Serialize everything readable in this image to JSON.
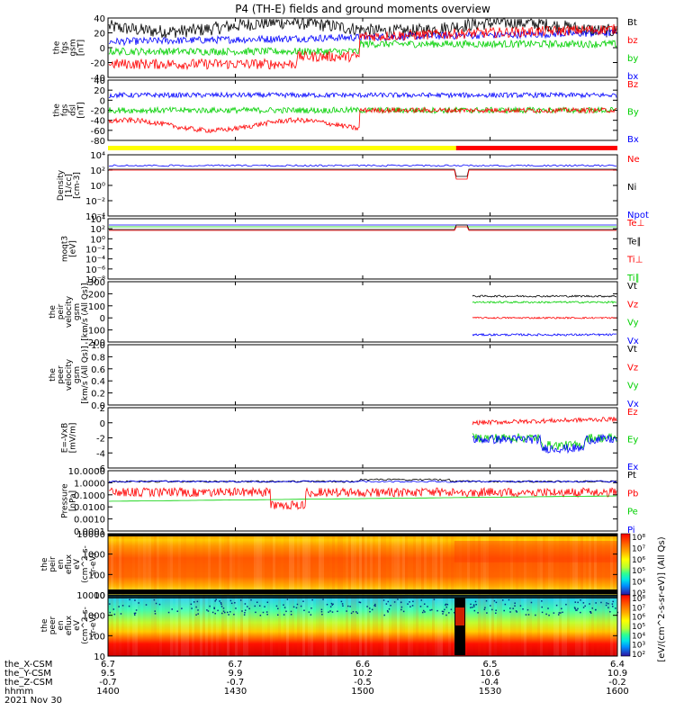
{
  "title": "P4 (TH-E) fields and ground moments overview",
  "colors": {
    "black": "#000000",
    "red": "#ff0000",
    "green": "#00d000",
    "blue": "#0000ff",
    "yellow": "#ffff00"
  },
  "x_ticks": [
    "1400",
    "1430",
    "1500",
    "1530",
    "1600"
  ],
  "footer": {
    "rows": [
      {
        "label": "the_X-CSM",
        "values": [
          "6.7",
          "6.7",
          "6.6",
          "6.5",
          "6.4"
        ]
      },
      {
        "label": "the_Y-CSM",
        "values": [
          "9.5",
          "9.9",
          "10.2",
          "10.6",
          "10.9"
        ]
      },
      {
        "label": "the_Z-CSM",
        "values": [
          "-0.7",
          "-0.7",
          "-0.5",
          "-0.4",
          "-0.2"
        ]
      },
      {
        "label": "hhmm",
        "values": [
          "1400",
          "1430",
          "1500",
          "1530",
          "1600"
        ]
      }
    ],
    "date": "2021 Nov 30"
  },
  "chart_data": [
    {
      "type": "line",
      "ylabel": [
        "the",
        "fgs",
        "gsm",
        "[nT]"
      ],
      "ylim": [
        -40,
        40
      ],
      "yticks": [
        "40",
        "20",
        "0",
        "-20",
        "-40"
      ],
      "legend": [
        {
          "name": "Bt",
          "color": "#000000"
        },
        {
          "name": "bz",
          "color": "#ff0000"
        },
        {
          "name": "by",
          "color": "#00d000"
        },
        {
          "name": "bx",
          "color": "#0000ff"
        }
      ]
    },
    {
      "type": "line",
      "ylabel": [
        "the",
        "fgs",
        "dsl",
        "[nT]"
      ],
      "ylim": [
        -80,
        40
      ],
      "yticks": [
        "40",
        "20",
        "0",
        "-20",
        "-40",
        "-60",
        "-80"
      ],
      "legend": [
        {
          "name": "Bz",
          "color": "#ff0000"
        },
        {
          "name": "By",
          "color": "#00d000"
        },
        {
          "name": "Bx",
          "color": "#0000ff"
        }
      ]
    },
    {
      "type": "bar",
      "segments": [
        {
          "from": "1400",
          "to": "1522",
          "color": "#ffff00"
        },
        {
          "from": "1522",
          "to": "1600",
          "color": "#ff0000"
        }
      ]
    },
    {
      "type": "line",
      "ylabel": [
        "Density",
        "[1/cc]",
        "[cm-3]"
      ],
      "log": true,
      "yticks": [
        "10⁴",
        "10²",
        "10⁰",
        "10⁻²",
        "10⁻⁴"
      ],
      "legend": [
        {
          "name": "Ne",
          "color": "#ff0000"
        },
        {
          "name": "Ni",
          "color": "#000000"
        },
        {
          "name": "Npot",
          "color": "#0000ff"
        }
      ]
    },
    {
      "type": "line",
      "ylabel": [
        "moqt3",
        "[eV]"
      ],
      "log": true,
      "yticks": [
        "10⁴",
        "10²",
        "10⁰",
        "10⁻²",
        "10⁻⁴",
        "10⁻⁶",
        "10⁻⁸"
      ],
      "legend": [
        {
          "name": "Te⊥",
          "color": "#ff0000"
        },
        {
          "name": "Te∥",
          "color": "#000000"
        },
        {
          "name": "Ti⊥",
          "color": "#ff0000"
        },
        {
          "name": "Ti∥",
          "color": "#00d000"
        }
      ]
    },
    {
      "type": "line",
      "ylabel": [
        "the",
        "peir",
        "velocity",
        "gsm",
        "[km/s (All Qs)]"
      ],
      "ylim": [
        -200,
        300
      ],
      "yticks": [
        "300",
        "200",
        "100",
        "0",
        "-100",
        "-200"
      ],
      "legend": [
        {
          "name": "Vt",
          "color": "#000000"
        },
        {
          "name": "Vz",
          "color": "#ff0000"
        },
        {
          "name": "Vy",
          "color": "#00d000"
        },
        {
          "name": "Vx",
          "color": "#0000ff"
        }
      ]
    },
    {
      "type": "line",
      "ylabel": [
        "the",
        "peer",
        "velocity",
        "gsm",
        "[km/s (All Qs)]"
      ],
      "ylim": [
        0,
        1
      ],
      "yticks": [
        "1.0",
        "0.8",
        "0.6",
        "0.4",
        "0.2",
        "0.0"
      ],
      "legend": [
        {
          "name": "Vt",
          "color": "#000000"
        },
        {
          "name": "Vz",
          "color": "#ff0000"
        },
        {
          "name": "Vy",
          "color": "#00d000"
        },
        {
          "name": "Vx",
          "color": "#0000ff"
        }
      ]
    },
    {
      "type": "line",
      "ylabel": [
        "E=-VxB",
        "[mV/m]"
      ],
      "ylim": [
        -6,
        2
      ],
      "yticks": [
        "2",
        "0",
        "-2",
        "-4",
        "-6"
      ],
      "legend": [
        {
          "name": "Ez",
          "color": "#ff0000"
        },
        {
          "name": "Ey",
          "color": "#00d000"
        },
        {
          "name": "Ex",
          "color": "#0000ff"
        }
      ]
    },
    {
      "type": "line",
      "ylabel": [
        "Pressure",
        "[nPa]"
      ],
      "log": true,
      "yticks": [
        "10.0000",
        "1.0000",
        "0.1000",
        "0.0100",
        "0.0010",
        "0.0001"
      ],
      "legend": [
        {
          "name": "Pt",
          "color": "#000000"
        },
        {
          "name": "Pb",
          "color": "#ff0000"
        },
        {
          "name": "Pe",
          "color": "#00d000"
        },
        {
          "name": "Pi",
          "color": "#0000ff"
        }
      ]
    },
    {
      "type": "heatmap",
      "ylabel": [
        "the",
        "peir",
        "en",
        "eflux",
        "eV",
        "(cm^2-s-",
        "sr-eV)"
      ],
      "yticks": [
        "10000",
        "1000",
        "100",
        "10"
      ],
      "colorbar_ticks": [
        "10⁸",
        "10⁷",
        "10⁶",
        "10⁵",
        "10⁴",
        "10³"
      ]
    },
    {
      "type": "heatmap",
      "ylabel": [
        "the",
        "peer",
        "en",
        "eflux",
        "eV",
        "(cm^2-s-",
        "sr-eV)"
      ],
      "yticks": [
        "10000",
        "1000",
        "100",
        "10"
      ],
      "colorbar_ticks": [
        "10⁸",
        "10⁷",
        "10⁶",
        "10⁵",
        "10⁴",
        "10³",
        "10²"
      ],
      "colorbar_label": "[eV/(cm^2-s-sr-eV)] (All Qs)"
    }
  ]
}
